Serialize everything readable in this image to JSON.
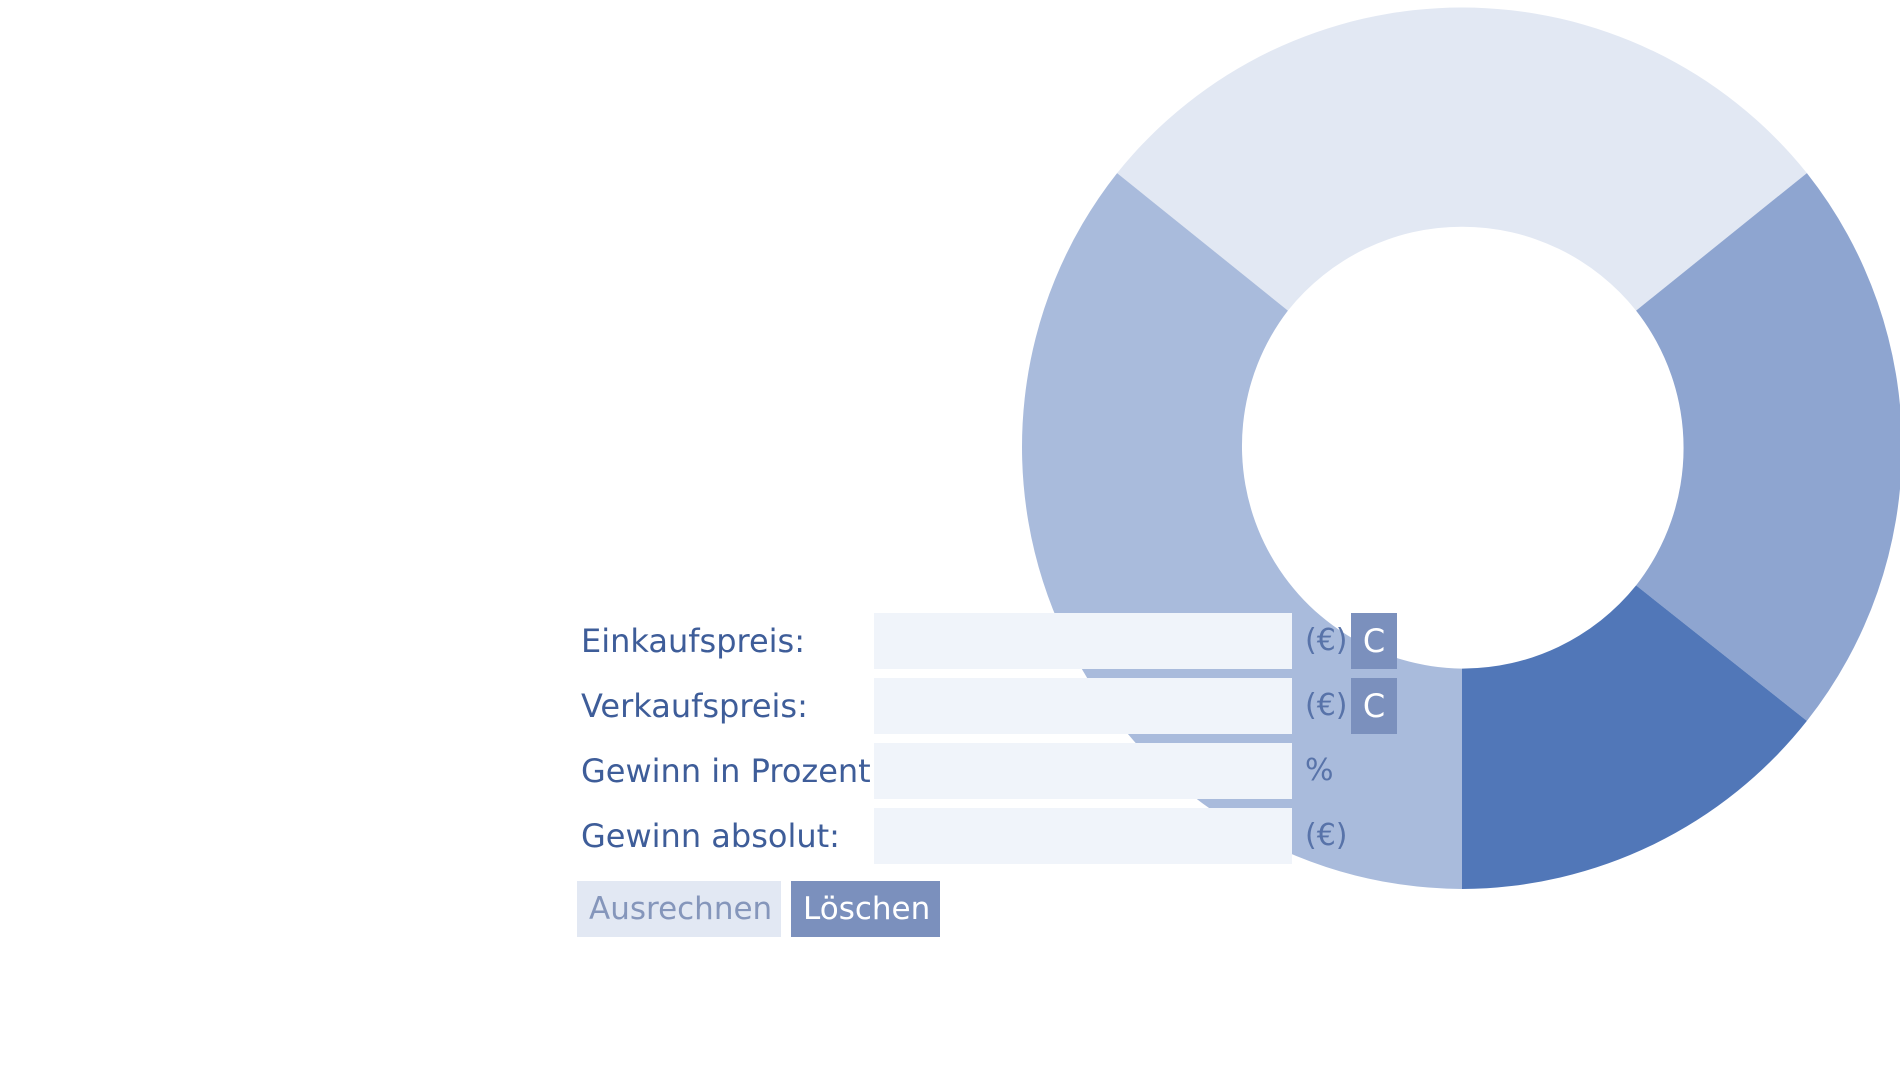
{
  "theme": {
    "label_color": "#3e5d99",
    "field_bg": "#f0f4fa",
    "button_primary": "#7b90bd",
    "button_secondary": "#e2e8f3",
    "donut_colors": [
      "#e2e8f3",
      "#8ea5d0",
      "#5177b8",
      "#a9bbdc"
    ]
  },
  "form": {
    "rows": [
      {
        "label": "Einkaufspreis:",
        "value": "",
        "unit": "(€)",
        "clear_label": "C"
      },
      {
        "label": "Verkaufspreis:",
        "value": "",
        "unit": "(€)",
        "clear_label": "C"
      },
      {
        "label": "Gewinn in Prozent:",
        "value": "",
        "unit": "%"
      },
      {
        "label": "Gewinn absolut:",
        "value": "",
        "unit": "(€)"
      }
    ],
    "calculate_label": "Ausrechnen",
    "reset_label": "Löschen"
  }
}
